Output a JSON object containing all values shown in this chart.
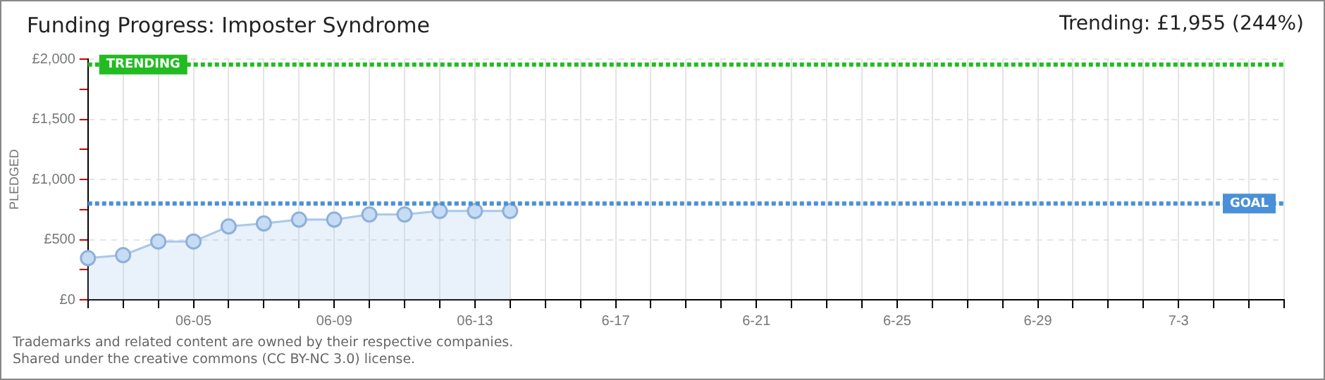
{
  "chart_data": {
    "type": "area",
    "title": "Funding Progress: Imposter Syndrome",
    "subtitle": "Trending: £1,955 (244%)",
    "ylabel": "PLEDGED",
    "categories": [
      null,
      null,
      null,
      "06-05",
      null,
      null,
      null,
      "06-09",
      null,
      null,
      null,
      "06-13",
      null,
      null,
      null,
      "6-17",
      null,
      null,
      null,
      "6-21",
      null,
      null,
      null,
      "6-25",
      null,
      null,
      null,
      "6-29",
      null,
      null,
      null,
      "7-3",
      null,
      null,
      null
    ],
    "series": [
      {
        "color": "#a8c8ec",
        "values": [
          346,
          371,
          484,
          484,
          609,
          634,
          666,
          666,
          709,
          709,
          738,
          738,
          738,
          null,
          null,
          null,
          null,
          null,
          null,
          null,
          null,
          null,
          null,
          null,
          null,
          null,
          null,
          null,
          null,
          null,
          null,
          null,
          null,
          null,
          null
        ]
      }
    ],
    "ylim": [
      0,
      2000
    ],
    "yticks": [
      {
        "value": 0,
        "label": "£0"
      },
      {
        "value": 250,
        "label": null
      },
      {
        "value": 500,
        "label": "£500"
      },
      {
        "value": 750,
        "label": null
      },
      {
        "value": 1000,
        "label": "£1,000"
      },
      {
        "value": 1250,
        "label": null
      },
      {
        "value": 1500,
        "label": "£1,500"
      },
      {
        "value": 1750,
        "label": null
      },
      {
        "value": 2000,
        "label": "£2,000"
      }
    ],
    "ref_lines": [
      {
        "axis": "y",
        "value": 1955,
        "label": "TRENDING",
        "color": "#22bb22",
        "line_style": "dotted"
      },
      {
        "axis": "y",
        "value": 800,
        "label": "GOAL",
        "color": "#4a90d9",
        "line_style": "dotted"
      }
    ],
    "grid": true,
    "legend": false,
    "marker": "circle",
    "line_style": "solid",
    "annotations": [
      "Trademarks and related content are owned by their respective companies.",
      "Shared under the creative commons (CC BY-NC 3.0) license."
    ]
  }
}
